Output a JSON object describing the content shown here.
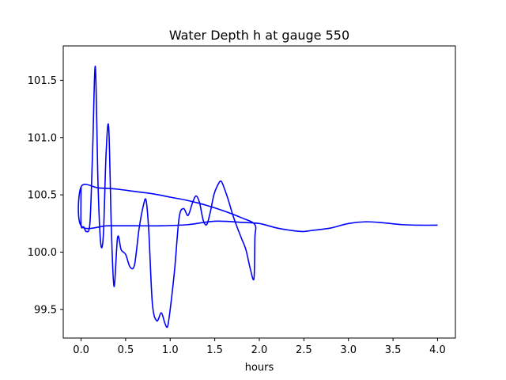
{
  "chart_data": {
    "type": "line",
    "title": "Water Depth h at gauge 550",
    "xlabel": "hours",
    "ylabel": "",
    "xlim": [
      -0.2,
      4.2
    ],
    "ylim": [
      99.25,
      101.8
    ],
    "xticks": [
      0.0,
      0.5,
      1.0,
      1.5,
      2.0,
      2.5,
      3.0,
      3.5,
      4.0
    ],
    "xtick_labels": [
      "0.0",
      "0.5",
      "1.0",
      "1.5",
      "2.0",
      "2.5",
      "3.0",
      "3.5",
      "4.0"
    ],
    "yticks": [
      99.5,
      100.0,
      100.5,
      101.0,
      101.5
    ],
    "ytick_labels": [
      "99.5",
      "100.0",
      "100.5",
      "101.0",
      "101.5"
    ],
    "grid": false,
    "legend": "none",
    "series": [
      {
        "color": "#0000ff",
        "x": [
          0.0,
          0.0,
          0.03,
          0.06,
          0.1,
          0.13,
          0.16,
          0.19,
          0.22,
          0.25,
          0.28,
          0.31,
          0.34,
          0.37,
          0.41,
          0.45,
          0.5,
          0.55,
          0.6,
          0.65,
          0.7,
          0.73,
          0.76,
          0.8,
          0.85,
          0.9,
          0.94,
          0.97,
          1.0,
          1.05,
          1.1,
          1.15,
          1.2,
          1.25,
          1.29,
          1.33,
          1.37,
          1.41,
          1.45,
          1.49,
          1.53,
          1.57,
          1.61,
          1.65,
          1.7,
          1.75,
          1.8,
          1.85,
          1.9,
          1.94,
          1.95,
          1.95,
          1.8,
          1.6,
          1.4,
          1.2,
          1.0,
          0.8,
          0.6,
          0.4,
          0.2,
          0.0,
          0.0,
          0.3,
          0.6,
          0.9,
          1.2,
          1.5,
          1.8,
          2.0,
          2.2,
          2.4,
          2.5,
          2.6,
          2.8,
          3.0,
          3.2,
          3.4,
          3.6,
          3.8,
          4.0
        ],
        "y": [
          100.57,
          100.24,
          100.22,
          100.18,
          100.26,
          100.9,
          101.62,
          100.6,
          100.08,
          100.15,
          100.85,
          101.09,
          100.2,
          99.7,
          100.13,
          100.02,
          99.98,
          99.87,
          99.89,
          100.2,
          100.41,
          100.45,
          100.18,
          99.55,
          99.4,
          99.47,
          99.38,
          99.35,
          99.5,
          99.85,
          100.3,
          100.38,
          100.32,
          100.43,
          100.49,
          100.43,
          100.28,
          100.24,
          100.35,
          100.5,
          100.58,
          100.62,
          100.55,
          100.46,
          100.33,
          100.22,
          100.12,
          100.02,
          99.85,
          99.77,
          100.12,
          100.24,
          100.3,
          100.36,
          100.41,
          100.45,
          100.48,
          100.51,
          100.53,
          100.55,
          100.56,
          100.57,
          100.23,
          100.23,
          100.23,
          100.23,
          100.24,
          100.27,
          100.26,
          100.25,
          100.21,
          100.185,
          100.18,
          100.19,
          100.21,
          100.25,
          100.265,
          100.255,
          100.24,
          100.235,
          100.235
        ]
      }
    ]
  }
}
